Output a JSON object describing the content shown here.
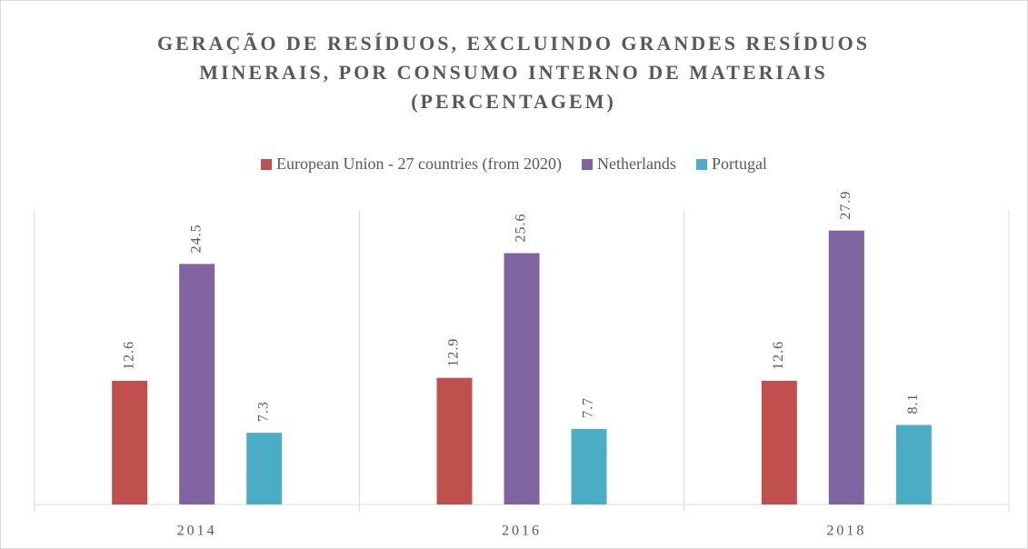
{
  "chart_data": {
    "type": "bar",
    "title": "GERAÇÃO DE RESÍDUOS, EXCLUINDO GRANDES RESÍDUOS MINERAIS, POR CONSUMO INTERNO DE MATERIAIS (PERCENTAGEM)",
    "categories": [
      "2014",
      "2016",
      "2018"
    ],
    "series": [
      {
        "name": "European Union - 27 countries (from 2020)",
        "color": "#c0504d",
        "values": [
          12.6,
          12.9,
          12.6
        ]
      },
      {
        "name": "Netherlands",
        "color": "#8064a2",
        "values": [
          24.5,
          25.6,
          27.9
        ]
      },
      {
        "name": "Portugal",
        "color": "#4bacc6",
        "values": [
          7.3,
          7.7,
          8.1
        ]
      }
    ],
    "ylim": [
      0,
      30
    ],
    "legend": "top"
  }
}
